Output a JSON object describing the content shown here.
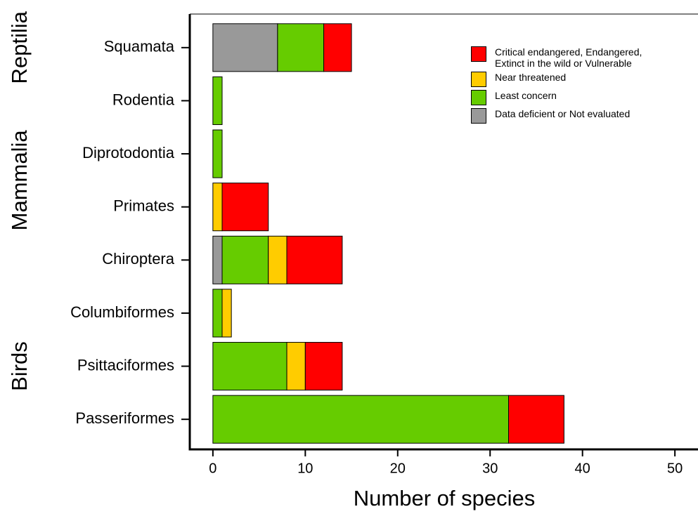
{
  "chart_data": {
    "type": "bar",
    "orientation": "horizontal",
    "stacked": true,
    "x_label": "Number of species",
    "groups": [
      {
        "name": "Reptilia",
        "categories": [
          "Squamata"
        ]
      },
      {
        "name": "Mammalia",
        "categories": [
          "Rodentia",
          "Diprotodontia",
          "Primates",
          "Chiroptera"
        ]
      },
      {
        "name": "Birds",
        "categories": [
          "Columbiformes",
          "Psittaciformes",
          "Passeriformes"
        ]
      }
    ],
    "series": [
      {
        "name": "Data deficient or Not evaluated",
        "color": "#999999",
        "values": [
          7,
          0,
          0,
          0,
          1,
          0,
          0,
          0
        ]
      },
      {
        "name": "Least concern",
        "color": "#66cc00",
        "values": [
          5,
          1,
          1,
          0,
          5,
          1,
          8,
          32
        ]
      },
      {
        "name": "Near threatened",
        "color": "#ffcc00",
        "values": [
          0,
          0,
          0,
          1,
          2,
          1,
          2,
          0
        ]
      },
      {
        "name": "Critical endangered, Endangered, Extinct in the wild or Vulnerable",
        "color": "#ff0000",
        "values": [
          3,
          0,
          0,
          5,
          6,
          0,
          4,
          6
        ]
      }
    ],
    "xlim": [
      -2.5,
      52.5
    ],
    "xticks": [
      0,
      10,
      20,
      30,
      40,
      50
    ]
  }
}
